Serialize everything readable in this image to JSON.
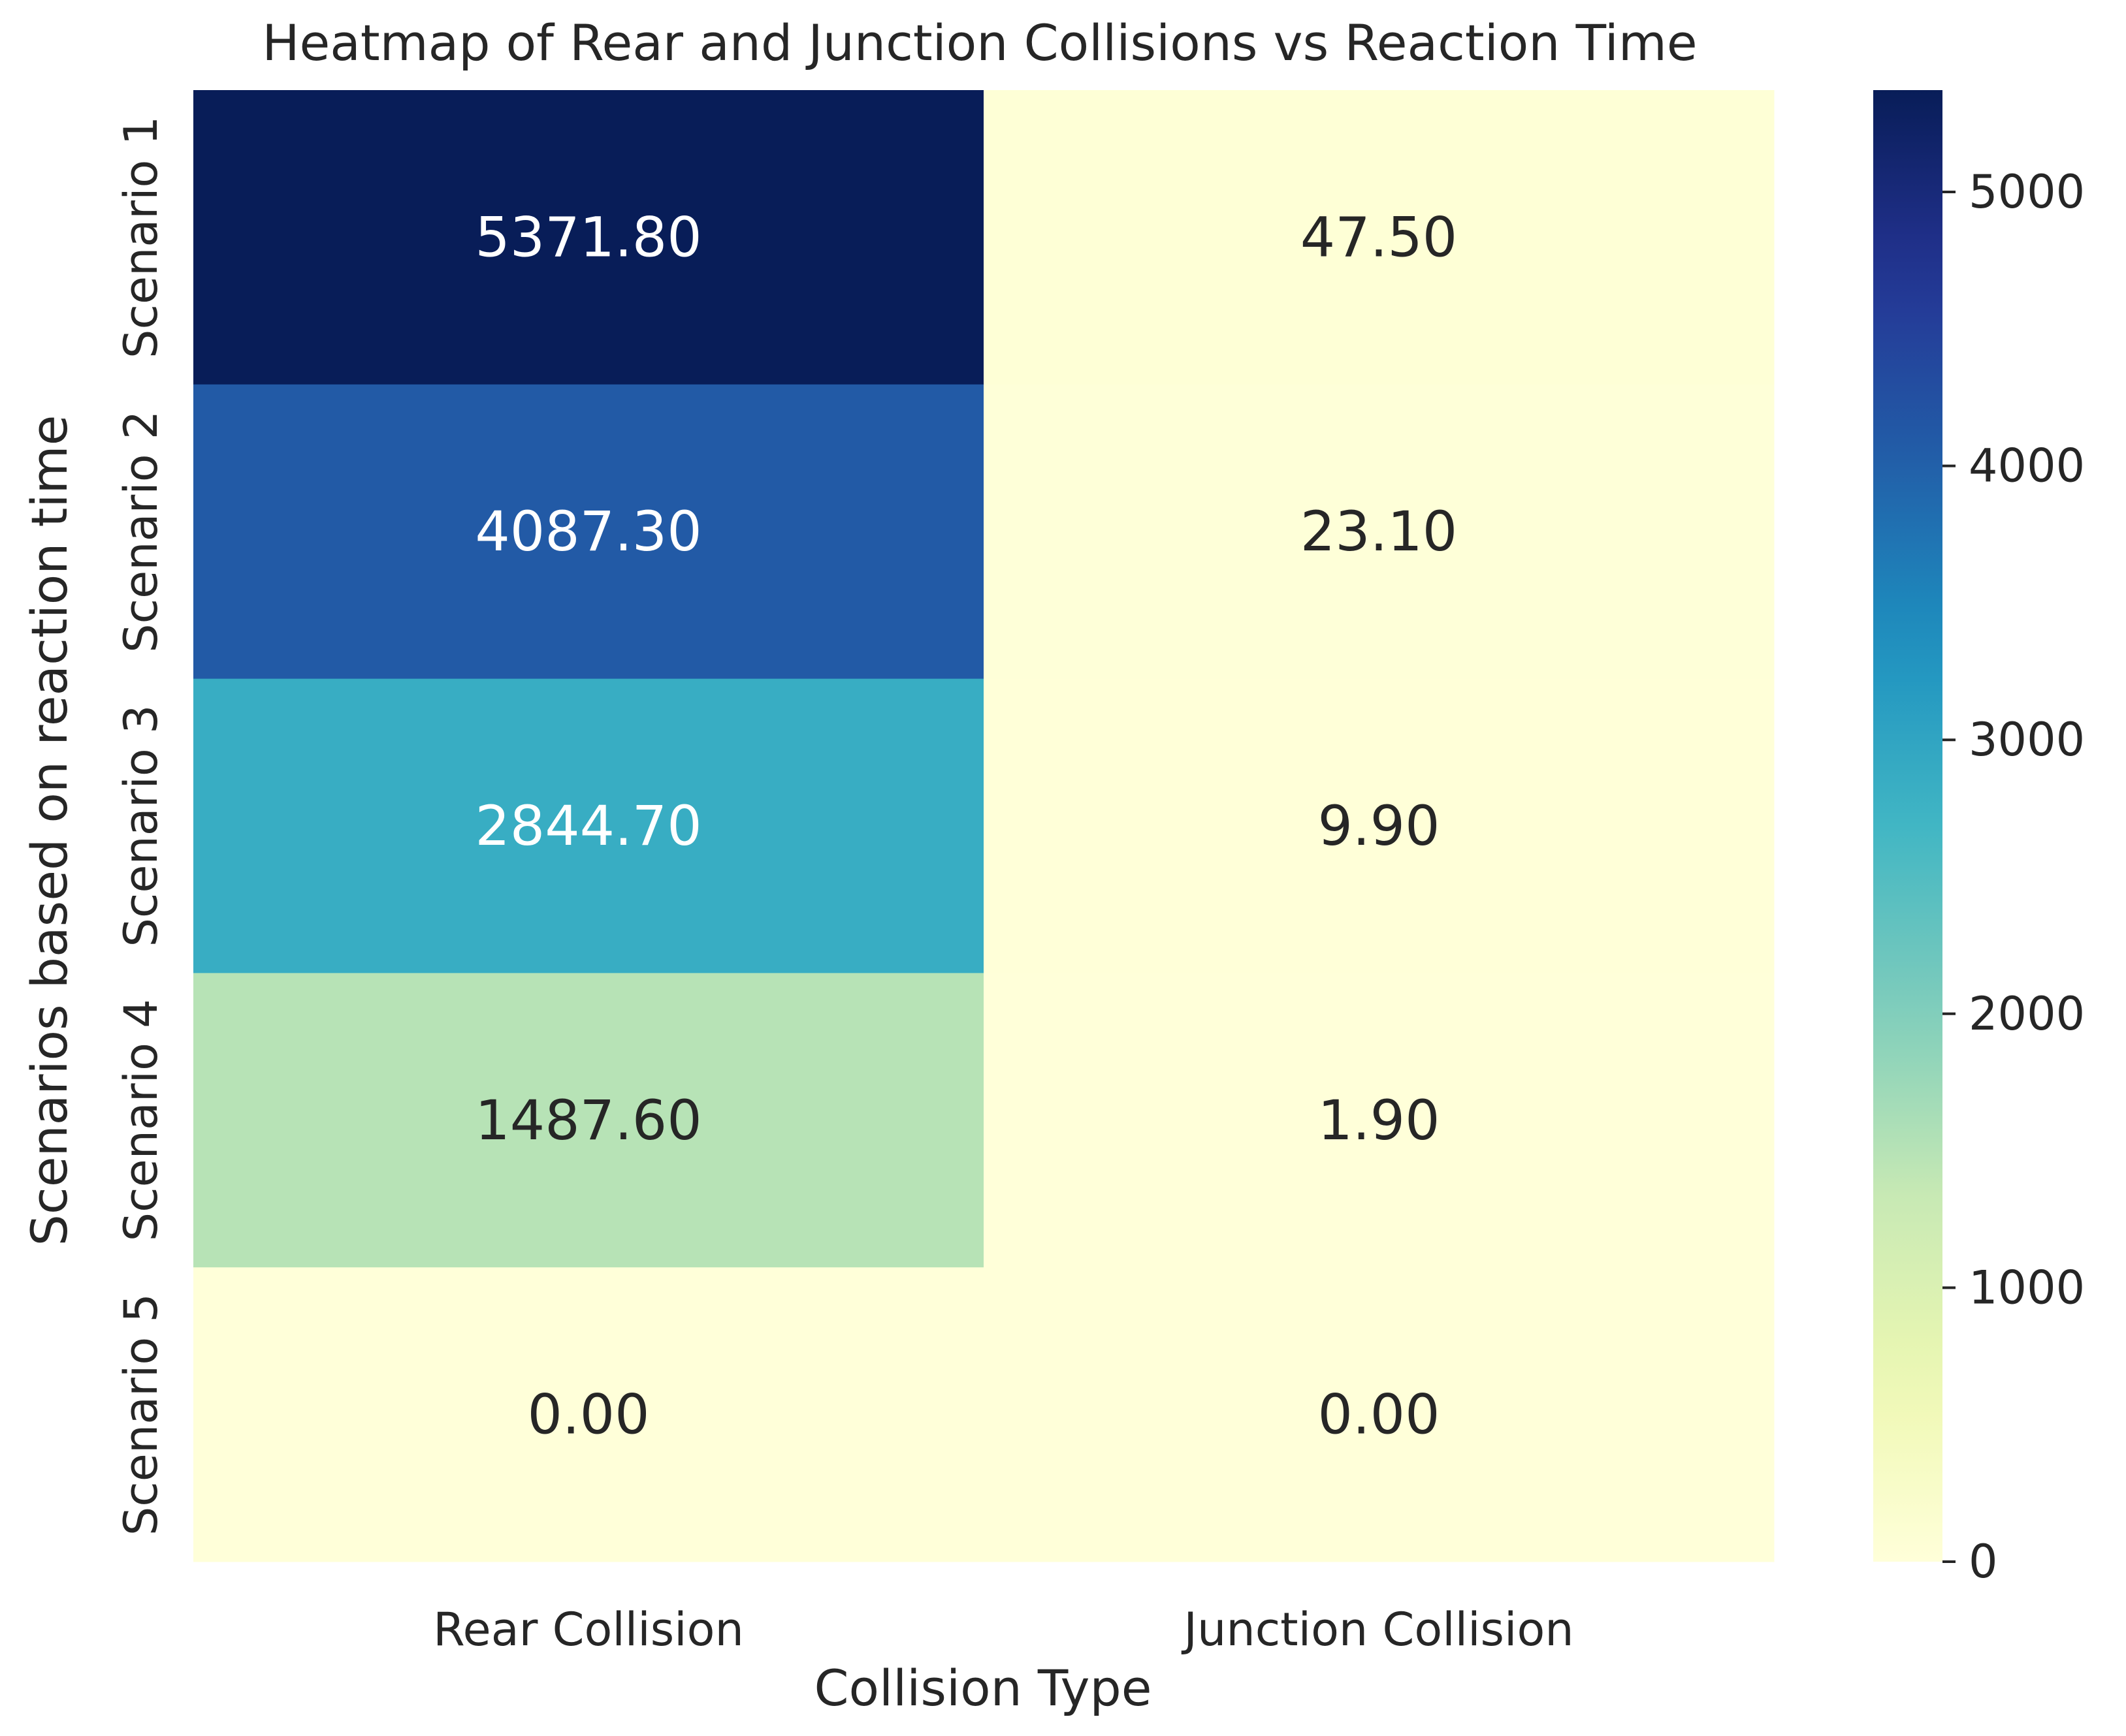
{
  "chart_data": {
    "type": "heatmap",
    "title": "Heatmap of Rear and Junction Collisions vs Reaction Time",
    "xlabel": "Collision Type",
    "ylabel": "Scenarios based on reaction time",
    "x_categories": [
      "Rear Collision",
      "Junction Collision"
    ],
    "y_categories": [
      "Scenario 1",
      "Scenario 2",
      "Scenario 3",
      "Scenario 4",
      "Scenario 5"
    ],
    "values": [
      [
        5371.8,
        47.5
      ],
      [
        4087.3,
        23.1
      ],
      [
        2844.7,
        9.9
      ],
      [
        1487.6,
        1.9
      ],
      [
        0.0,
        0.0
      ]
    ],
    "value_labels": [
      [
        "5371.80",
        "47.50"
      ],
      [
        "4087.30",
        "23.10"
      ],
      [
        "2844.70",
        "9.90"
      ],
      [
        "1487.60",
        "1.90"
      ],
      [
        "0.00",
        "0.00"
      ]
    ],
    "colormap": "YlGnBu",
    "colorbar": {
      "range": [
        0,
        5371.8
      ],
      "ticks": [
        0,
        1000,
        2000,
        3000,
        4000,
        5000
      ],
      "tick_labels": [
        "0",
        "1000",
        "2000",
        "3000",
        "4000",
        "5000"
      ]
    }
  }
}
